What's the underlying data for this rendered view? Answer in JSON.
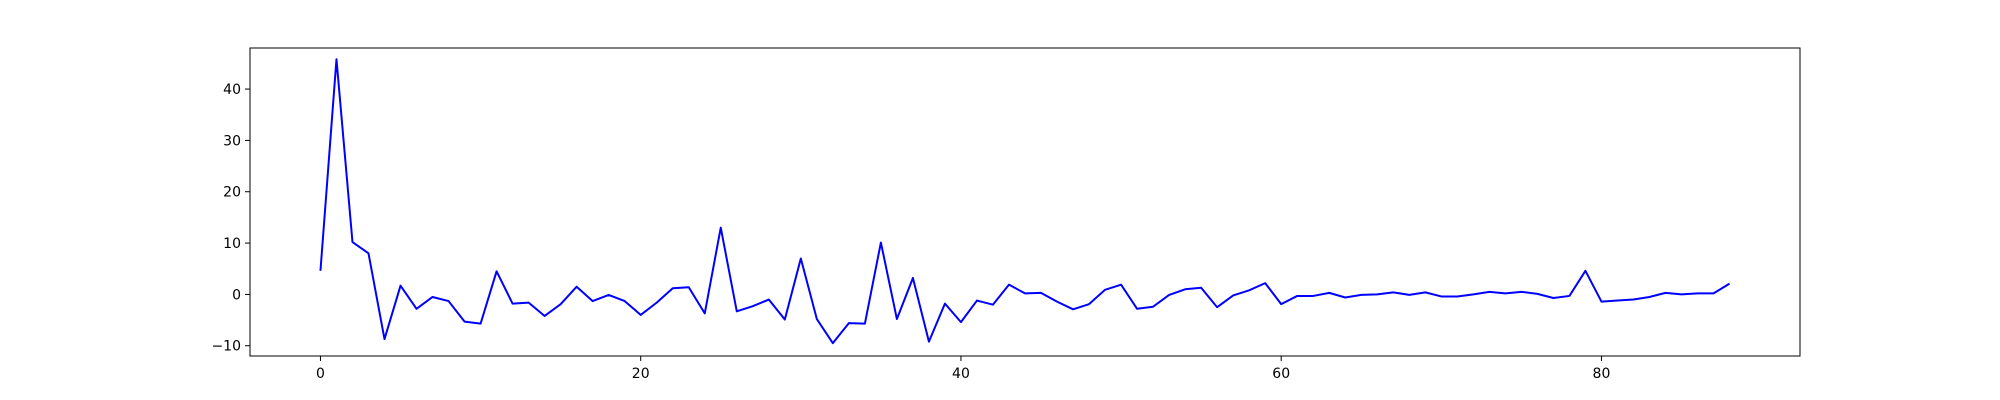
{
  "chart_data": {
    "type": "line",
    "title": "",
    "xlabel": "",
    "ylabel": "",
    "xlim": [
      -4.4,
      92.4
    ],
    "ylim": [
      -12,
      48
    ],
    "xticks": [
      0,
      20,
      40,
      60,
      80
    ],
    "xtick_labels": [
      "0",
      "20",
      "40",
      "60",
      "80"
    ],
    "yticks": [
      -10,
      0,
      10,
      20,
      30,
      40
    ],
    "ytick_labels": [
      "−10",
      "0",
      "10",
      "20",
      "30",
      "40"
    ],
    "grid": false,
    "legend": "none",
    "series": [
      {
        "color": "#0000ff",
        "x": [
          0,
          1,
          2,
          3,
          4,
          5,
          6,
          7,
          8,
          9,
          10,
          11,
          12,
          13,
          14,
          15,
          16,
          17,
          18,
          19,
          20,
          21,
          22,
          23,
          24,
          25,
          26,
          27,
          28,
          29,
          30,
          31,
          32,
          33,
          34,
          35,
          36,
          37,
          38,
          39,
          40,
          41,
          42,
          43,
          44,
          45,
          46,
          47,
          48,
          49,
          50,
          51,
          52,
          53,
          54,
          55,
          56,
          57,
          58,
          59,
          60,
          61,
          62,
          63,
          64,
          65,
          66,
          67,
          68,
          69,
          70,
          71,
          72,
          73,
          74,
          75,
          76,
          77,
          78,
          79,
          80,
          81,
          82,
          83,
          84,
          85,
          86,
          87,
          88
        ],
        "values": [
          4.6,
          45.8,
          10.2,
          8.0,
          -8.7,
          1.7,
          -2.8,
          -0.5,
          -1.3,
          -5.3,
          -5.7,
          4.5,
          -1.8,
          -1.6,
          -4.2,
          -1.9,
          1.5,
          -1.3,
          -0.1,
          -1.3,
          -4.0,
          -1.6,
          1.2,
          1.4,
          -3.7,
          13.0,
          -3.3,
          -2.3,
          -1.0,
          -4.9,
          7.0,
          -4.8,
          -9.5,
          -5.6,
          -5.7,
          10.1,
          -4.8,
          3.2,
          -9.2,
          -1.8,
          -5.4,
          -1.2,
          -2.0,
          1.9,
          0.2,
          0.3,
          -1.4,
          -2.9,
          -1.9,
          0.9,
          1.9,
          -2.8,
          -2.4,
          -0.1,
          1.0,
          1.3,
          -2.5,
          -0.2,
          0.8,
          2.2,
          -1.9,
          -0.3,
          -0.3,
          0.3,
          -0.6,
          -0.1,
          0.0,
          0.4,
          -0.1,
          0.4,
          -0.4,
          -0.4,
          0.0,
          0.5,
          0.2,
          0.5,
          0.1,
          -0.7,
          -0.3,
          4.6,
          -1.4,
          -1.2,
          -1.0,
          -0.5,
          0.3,
          0.0,
          0.2,
          0.2,
          2.1
        ]
      }
    ]
  }
}
